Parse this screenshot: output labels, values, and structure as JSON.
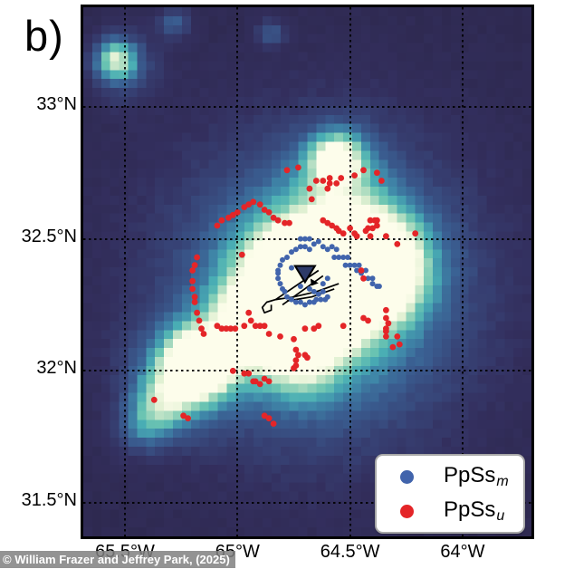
{
  "figure": {
    "panel_label": "b)",
    "credit": "© William Frazer and Jeffrey Park, (2025)"
  },
  "axes": {
    "x_ticks": [
      {
        "label": "65.5°W",
        "lon": -65.5
      },
      {
        "label": "65°W",
        "lon": -65.0
      },
      {
        "label": "64.5°W",
        "lon": -64.5
      },
      {
        "label": "64°W",
        "lon": -64.0
      }
    ],
    "y_ticks": [
      {
        "label": "33°N",
        "lat": 33.0
      },
      {
        "label": "32.5°N",
        "lat": 32.5
      },
      {
        "label": "32°N",
        "lat": 32.0
      },
      {
        "label": "31.5°N",
        "lat": 31.5
      }
    ]
  },
  "legend": {
    "entries": [
      {
        "name": "PpSs",
        "sub": "m",
        "series": "PpSs_m"
      },
      {
        "name": "PpSs",
        "sub": "u",
        "series": "PpSs_u"
      }
    ]
  },
  "chart_data": {
    "type": "heatmap",
    "overlay_type": "scatter",
    "map": {
      "lon_min": -65.685,
      "lon_max": -63.694,
      "lat_min": 31.373,
      "lat_max": 33.377
    },
    "heatmap": {
      "description": "seismic stacking amplitude around Bermuda (bright = high)",
      "colormap_stops": [
        [
          0.0,
          "#2e2950"
        ],
        [
          0.12,
          "#332f5e"
        ],
        [
          0.25,
          "#374275"
        ],
        [
          0.4,
          "#3a5f92"
        ],
        [
          0.52,
          "#3f86a8"
        ],
        [
          0.62,
          "#49adb4"
        ],
        [
          0.72,
          "#6ec6b2"
        ],
        [
          0.82,
          "#abdbc0"
        ],
        [
          0.9,
          "#e0f0d2"
        ],
        [
          1.0,
          "#fdfdeb"
        ]
      ],
      "blobs": [
        {
          "lon": -64.72,
          "lat": 32.33,
          "sigma": 0.17,
          "amp": 1.3
        },
        {
          "lon": -64.48,
          "lat": 32.38,
          "sigma": 0.15,
          "amp": 1.2
        },
        {
          "lon": -64.62,
          "lat": 32.3,
          "sigma": 0.38,
          "amp": 0.55
        },
        {
          "lon": -64.65,
          "lat": 32.3,
          "sigma": 0.65,
          "amp": 0.25
        },
        {
          "lon": -65.17,
          "lat": 32.03,
          "sigma": 0.085,
          "amp": 1.25
        },
        {
          "lon": -65.22,
          "lat": 32.0,
          "sigma": 0.16,
          "amp": 0.55
        },
        {
          "lon": -64.95,
          "lat": 32.17,
          "sigma": 0.12,
          "amp": 0.6
        },
        {
          "lon": -65.33,
          "lat": 31.88,
          "sigma": 0.1,
          "amp": 0.45
        },
        {
          "lon": -65.43,
          "lat": 31.78,
          "sigma": 0.08,
          "amp": 0.3
        },
        {
          "lon": -65.54,
          "lat": 33.18,
          "sigma": 0.065,
          "amp": 0.68
        },
        {
          "lon": -65.5,
          "lat": 33.15,
          "sigma": 0.12,
          "amp": 0.25
        },
        {
          "lon": -65.28,
          "lat": 33.32,
          "sigma": 0.05,
          "amp": 0.35
        },
        {
          "lon": -64.85,
          "lat": 33.28,
          "sigma": 0.045,
          "amp": 0.3
        },
        {
          "lon": -64.56,
          "lat": 32.8,
          "sigma": 0.08,
          "amp": 0.7
        },
        {
          "lon": -64.55,
          "lat": 32.75,
          "sigma": 0.15,
          "amp": 0.28
        },
        {
          "lon": -64.35,
          "lat": 32.42,
          "sigma": 0.15,
          "amp": 0.55
        },
        {
          "lon": -64.72,
          "lat": 32.05,
          "sigma": 0.13,
          "amp": 0.45
        }
      ]
    },
    "series": [
      {
        "name": "PpSs_m",
        "color": "#4164ac",
        "marker_radius": 3.0,
        "points": [
          [
            -64.76,
            32.45
          ],
          [
            -64.74,
            32.46
          ],
          [
            -64.72,
            32.47
          ],
          [
            -64.7,
            32.47
          ],
          [
            -64.68,
            32.46
          ],
          [
            -64.66,
            32.48
          ],
          [
            -64.64,
            32.49
          ],
          [
            -64.72,
            32.5
          ],
          [
            -64.7,
            32.5
          ],
          [
            -64.68,
            32.5
          ],
          [
            -64.78,
            32.43
          ],
          [
            -64.8,
            32.42
          ],
          [
            -64.81,
            32.4
          ],
          [
            -64.82,
            32.38
          ],
          [
            -64.82,
            32.37
          ],
          [
            -64.82,
            32.35
          ],
          [
            -64.81,
            32.33
          ],
          [
            -64.8,
            32.31
          ],
          [
            -64.79,
            32.3
          ],
          [
            -64.78,
            32.28
          ],
          [
            -64.76,
            32.27
          ],
          [
            -64.74,
            32.26
          ],
          [
            -64.72,
            32.26
          ],
          [
            -64.7,
            32.25
          ],
          [
            -64.68,
            32.26
          ],
          [
            -64.66,
            32.26
          ],
          [
            -64.76,
            32.39
          ],
          [
            -64.72,
            32.32
          ],
          [
            -64.62,
            32.47
          ],
          [
            -64.6,
            32.46
          ],
          [
            -64.58,
            32.47
          ],
          [
            -64.56,
            32.46
          ],
          [
            -64.57,
            32.43
          ],
          [
            -64.55,
            32.43
          ],
          [
            -64.53,
            32.43
          ],
          [
            -64.51,
            32.43
          ],
          [
            -64.52,
            32.4
          ],
          [
            -64.5,
            32.4
          ],
          [
            -64.48,
            32.4
          ],
          [
            -64.46,
            32.4
          ],
          [
            -64.47,
            32.38
          ],
          [
            -64.45,
            32.37
          ],
          [
            -64.43,
            32.38
          ],
          [
            -64.44,
            32.35
          ],
          [
            -64.42,
            32.35
          ],
          [
            -64.4,
            32.35
          ],
          [
            -64.4,
            32.33
          ],
          [
            -64.38,
            32.32
          ],
          [
            -64.37,
            32.32
          ],
          [
            -64.68,
            32.31
          ],
          [
            -64.66,
            32.3
          ],
          [
            -64.64,
            32.29
          ],
          [
            -64.62,
            32.3
          ],
          [
            -64.6,
            32.28
          ],
          [
            -64.61,
            32.27
          ],
          [
            -64.63,
            32.27
          ],
          [
            -64.65,
            32.27
          ],
          [
            -64.62,
            32.33
          ],
          [
            -64.6,
            32.35
          ]
        ]
      },
      {
        "name": "PpSs_u",
        "color": "#e42528",
        "marker_radius": 3.4,
        "points": [
          [
            -65.09,
            32.55
          ],
          [
            -65.07,
            32.57
          ],
          [
            -65.04,
            32.58
          ],
          [
            -65.02,
            32.59
          ],
          [
            -65.0,
            32.6
          ],
          [
            -64.97,
            32.62
          ],
          [
            -64.95,
            32.63
          ],
          [
            -64.93,
            32.64
          ],
          [
            -64.9,
            32.63
          ],
          [
            -64.88,
            32.61
          ],
          [
            -64.86,
            32.6
          ],
          [
            -64.84,
            32.58
          ],
          [
            -64.82,
            32.57
          ],
          [
            -64.79,
            32.56
          ],
          [
            -64.77,
            32.56
          ],
          [
            -64.62,
            32.57
          ],
          [
            -64.6,
            32.56
          ],
          [
            -64.58,
            32.55
          ],
          [
            -64.56,
            32.54
          ],
          [
            -64.55,
            32.53
          ],
          [
            -64.53,
            32.52
          ],
          [
            -64.5,
            32.54
          ],
          [
            -64.48,
            32.52
          ],
          [
            -64.47,
            32.51
          ],
          [
            -64.78,
            32.76
          ],
          [
            -64.73,
            32.77
          ],
          [
            -64.68,
            32.69
          ],
          [
            -64.62,
            32.72
          ],
          [
            -64.59,
            32.73
          ],
          [
            -64.54,
            32.73
          ],
          [
            -64.48,
            32.74
          ],
          [
            -64.44,
            32.76
          ],
          [
            -64.38,
            32.75
          ],
          [
            -64.36,
            32.72
          ],
          [
            -64.65,
            32.72
          ],
          [
            -64.59,
            32.71
          ],
          [
            -64.56,
            32.71
          ],
          [
            -64.67,
            32.65
          ],
          [
            -64.6,
            32.69
          ],
          [
            -64.41,
            32.57
          ],
          [
            -64.38,
            32.57
          ],
          [
            -64.43,
            32.53
          ],
          [
            -64.42,
            32.54
          ],
          [
            -64.4,
            32.54
          ],
          [
            -64.39,
            32.57
          ],
          [
            -64.38,
            32.55
          ],
          [
            -64.41,
            32.51
          ],
          [
            -64.34,
            32.51
          ],
          [
            -64.29,
            32.48
          ],
          [
            -64.21,
            32.52
          ],
          [
            -64.45,
            32.38
          ],
          [
            -64.44,
            32.35
          ],
          [
            -64.34,
            32.23
          ],
          [
            -64.34,
            32.2
          ],
          [
            -64.33,
            32.18
          ],
          [
            -64.34,
            32.16
          ],
          [
            -64.34,
            32.15
          ],
          [
            -64.34,
            32.13
          ],
          [
            -64.29,
            32.13
          ],
          [
            -64.31,
            32.09
          ],
          [
            -64.28,
            32.1
          ],
          [
            -64.44,
            32.2
          ],
          [
            -64.42,
            32.19
          ],
          [
            -65.18,
            32.43
          ],
          [
            -65.19,
            32.4
          ],
          [
            -65.2,
            32.38
          ],
          [
            -65.2,
            32.34
          ],
          [
            -65.2,
            32.31
          ],
          [
            -65.19,
            32.28
          ],
          [
            -65.19,
            32.26
          ],
          [
            -65.18,
            32.22
          ],
          [
            -65.17,
            32.19
          ],
          [
            -65.16,
            32.16
          ],
          [
            -65.15,
            32.14
          ],
          [
            -65.09,
            32.17
          ],
          [
            -65.07,
            32.16
          ],
          [
            -65.05,
            32.16
          ],
          [
            -65.03,
            32.16
          ],
          [
            -65.01,
            32.16
          ],
          [
            -64.97,
            32.17
          ],
          [
            -64.94,
            32.19
          ],
          [
            -64.92,
            32.17
          ],
          [
            -64.9,
            32.17
          ],
          [
            -64.88,
            32.17
          ],
          [
            -64.86,
            32.14
          ],
          [
            -64.81,
            32.13
          ],
          [
            -64.75,
            32.12
          ],
          [
            -64.74,
            32.08
          ],
          [
            -64.73,
            32.06
          ],
          [
            -64.74,
            32.04
          ],
          [
            -64.74,
            32.02
          ],
          [
            -64.75,
            32.01
          ],
          [
            -64.7,
            32.06
          ],
          [
            -64.69,
            32.05
          ],
          [
            -64.7,
            32.16
          ],
          [
            -64.66,
            32.16
          ],
          [
            -64.64,
            32.17
          ],
          [
            -64.53,
            32.17
          ],
          [
            -64.97,
            31.99
          ],
          [
            -64.95,
            31.99
          ],
          [
            -64.93,
            31.96
          ],
          [
            -64.92,
            31.96
          ],
          [
            -64.9,
            31.95
          ],
          [
            -64.88,
            31.97
          ],
          [
            -64.86,
            31.96
          ],
          [
            -65.02,
            32.0
          ],
          [
            -65.37,
            31.89
          ],
          [
            -65.24,
            31.83
          ],
          [
            -65.22,
            31.82
          ],
          [
            -64.88,
            31.83
          ],
          [
            -64.86,
            31.82
          ],
          [
            -64.84,
            31.8
          ],
          [
            -64.98,
            32.44
          ],
          [
            -64.95,
            32.22
          ]
        ]
      }
    ],
    "station_marker": {
      "lon": -64.7,
      "lat": 32.37,
      "shape": "inverted-triangle",
      "fill": "#2d3a68"
    },
    "coastline": {
      "color": "#000000",
      "lines": [
        [
          [
            -64.55,
            32.33
          ],
          [
            -64.65,
            32.3
          ],
          [
            -64.75,
            32.28
          ],
          [
            -64.83,
            32.27
          ],
          [
            -64.87,
            32.26
          ],
          [
            -64.89,
            32.24
          ],
          [
            -64.88,
            32.22
          ],
          [
            -64.85,
            32.23
          ],
          [
            -64.85,
            32.25
          ]
        ],
        [
          [
            -64.57,
            32.31
          ],
          [
            -64.67,
            32.28
          ],
          [
            -64.78,
            32.265
          ]
        ],
        [
          [
            -64.64,
            32.38
          ],
          [
            -64.83,
            32.27
          ]
        ],
        [
          [
            -64.62,
            32.36
          ],
          [
            -64.8,
            32.25
          ]
        ]
      ]
    }
  }
}
